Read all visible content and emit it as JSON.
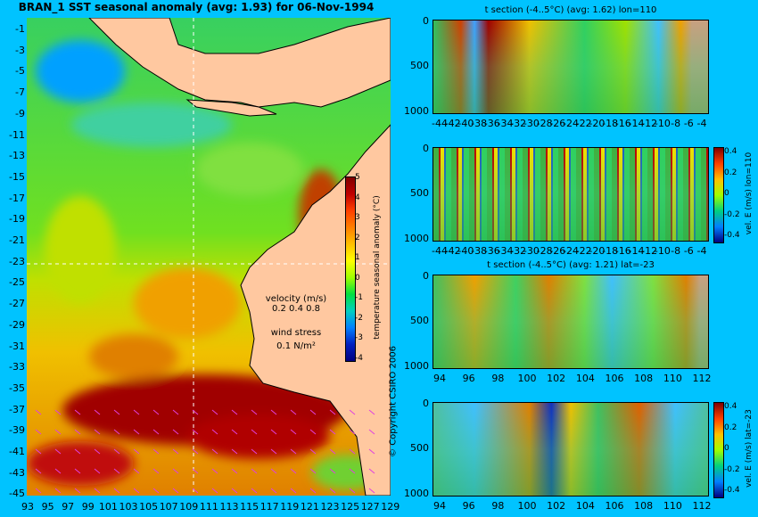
{
  "main_title": "BRAN_1 SST seasonal anomaly (avg: 1.93) for 06-Nov-1994",
  "copyright": "© Copyright CSIRO 2006",
  "map": {
    "lat_ticks": [
      "-1",
      "-3",
      "-5",
      "-7",
      "-9",
      "-11",
      "-13",
      "-15",
      "-17",
      "-19",
      "-21",
      "-23",
      "-25",
      "-27",
      "-29",
      "-31",
      "-33",
      "-35",
      "-37",
      "-39",
      "-41",
      "-43",
      "-45"
    ],
    "lon_ticks": [
      "93",
      "95",
      "97",
      "99",
      "101",
      "103",
      "105",
      "107",
      "109",
      "111",
      "113",
      "115",
      "117",
      "119",
      "121",
      "123",
      "125",
      "127",
      "129"
    ],
    "colorbar_label": "temperature seasonal anomaly (°C)",
    "colorbar_ticks": [
      "5",
      "4",
      "3",
      "2",
      "1",
      "0",
      "-1",
      "-2",
      "-3",
      "-4"
    ],
    "velocity_label": "velocity (m/s)",
    "velocity_scale": "0.2 0.4 0.8",
    "wind_label": "wind stress",
    "wind_scale": "0.1 N/m²",
    "colors": {
      "land": "#ffc8a0",
      "anomaly_hot": "#a00000",
      "anomaly_cold": "#1030c0",
      "vectors": "#e040e0"
    }
  },
  "panels": [
    {
      "title": "t section (-4..5°C) (avg: 1.62) lon=110",
      "x_ticks": [
        "-44",
        "-42",
        "-40",
        "-38",
        "-36",
        "-34",
        "-32",
        "-30",
        "-28",
        "-26",
        "-24",
        "-22",
        "-20",
        "-18",
        "-16",
        "-14",
        "-12",
        "-10",
        "-8",
        "-6",
        "-4"
      ],
      "y_ticks": [
        "0",
        "500",
        "1000"
      ],
      "side_label": ""
    },
    {
      "title": "",
      "x_ticks": [
        "-44",
        "-42",
        "-40",
        "-38",
        "-36",
        "-34",
        "-32",
        "-30",
        "-28",
        "-26",
        "-24",
        "-22",
        "-20",
        "-18",
        "-16",
        "-14",
        "-12",
        "-10",
        "-8",
        "-6",
        "-4"
      ],
      "y_ticks": [
        "0",
        "500",
        "1000"
      ],
      "side_label": "vel. E (m/s) lon=110",
      "cbar_ticks": [
        "0.4",
        "0.2",
        "0",
        "-0.2",
        "-0.4"
      ]
    },
    {
      "title": "t section (-4..5°C) (avg: 1.21) lat=-23",
      "x_ticks": [
        "94",
        "96",
        "98",
        "100",
        "102",
        "104",
        "106",
        "108",
        "110",
        "112"
      ],
      "y_ticks": [
        "0",
        "500",
        "1000"
      ],
      "side_label": ""
    },
    {
      "title": "",
      "x_ticks": [
        "94",
        "96",
        "98",
        "100",
        "102",
        "104",
        "106",
        "108",
        "110",
        "112"
      ],
      "y_ticks": [
        "0",
        "500",
        "1000"
      ],
      "side_label": "vel. E (m/s) lat=-23",
      "cbar_ticks": [
        "0.4",
        "0.2",
        "0",
        "-0.2",
        "-0.4"
      ]
    }
  ]
}
